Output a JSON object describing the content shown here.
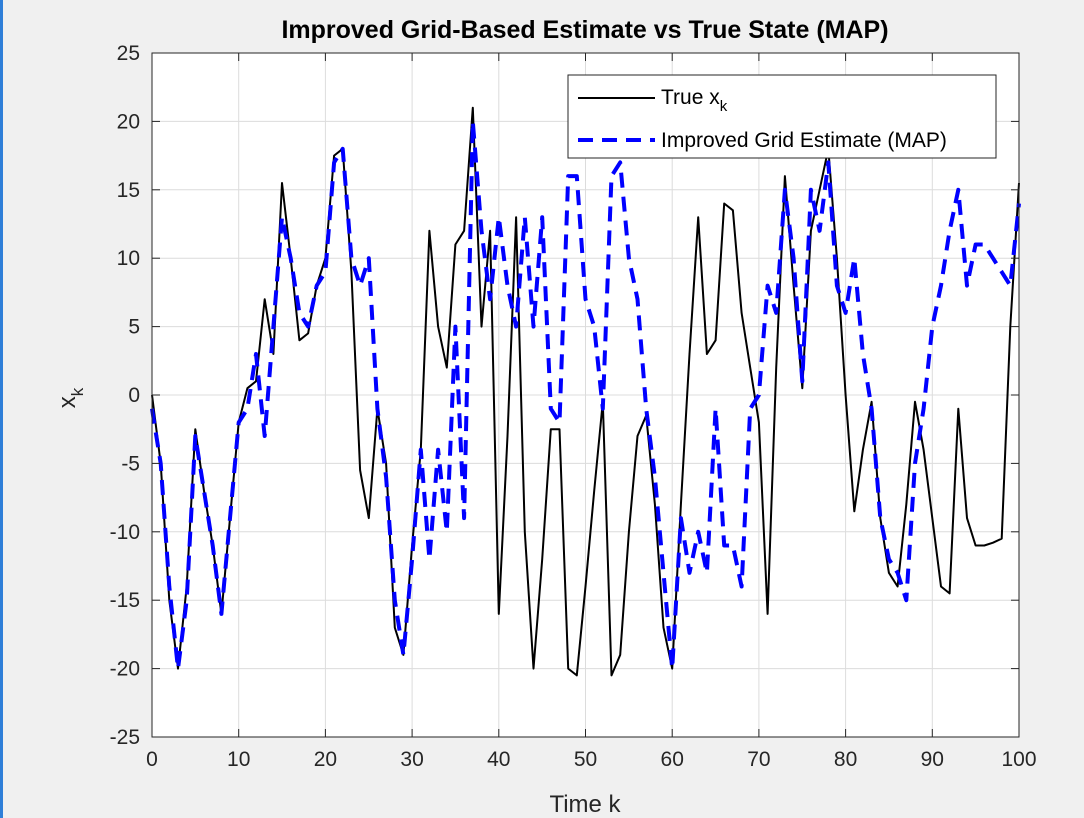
{
  "chart_data": {
    "type": "line",
    "title": "Improved Grid-Based Estimate vs True State (MAP)",
    "xlabel": "Time k",
    "ylabel": {
      "base": "x",
      "sub": "k"
    },
    "xlim": [
      0,
      100
    ],
    "ylim": [
      -25,
      25
    ],
    "xticks": [
      0,
      10,
      20,
      30,
      40,
      50,
      60,
      70,
      80,
      90,
      100
    ],
    "yticks": [
      -25,
      -20,
      -15,
      -10,
      -5,
      0,
      5,
      10,
      15,
      20,
      25
    ],
    "grid": true,
    "legend_position": "top-right",
    "series": [
      {
        "name": "True x",
        "name_sub": "k",
        "color": "#000000",
        "style": "solid",
        "x": [
          0,
          1,
          2,
          3,
          4,
          5,
          6,
          7,
          8,
          9,
          10,
          11,
          12,
          13,
          14,
          15,
          16,
          17,
          18,
          19,
          20,
          21,
          22,
          23,
          24,
          25,
          26,
          27,
          28,
          29,
          30,
          31,
          32,
          33,
          34,
          35,
          36,
          37,
          38,
          39,
          40,
          41,
          42,
          43,
          44,
          45,
          46,
          47,
          48,
          49,
          50,
          51,
          52,
          53,
          54,
          55,
          56,
          57,
          58,
          59,
          60,
          61,
          62,
          63,
          64,
          65,
          66,
          67,
          68,
          69,
          70,
          71,
          72,
          73,
          74,
          75,
          76,
          77,
          78,
          79,
          80,
          81,
          82,
          83,
          84,
          85,
          86,
          87,
          88,
          89,
          90,
          91,
          92,
          93,
          94,
          95,
          96,
          97,
          98,
          99,
          100
        ],
        "values": [
          0,
          -5,
          -15,
          -20,
          -14,
          -2.5,
          -7,
          -11,
          -16,
          -9,
          -2,
          0.5,
          1,
          7,
          3,
          15.5,
          10,
          4,
          4.5,
          8,
          10,
          17.5,
          18,
          9,
          -5.5,
          -9,
          -1,
          -5,
          -17,
          -19,
          -11,
          -4,
          12,
          5,
          2,
          11,
          12,
          21,
          5,
          12,
          -16,
          -3,
          13,
          -10,
          -20,
          -12,
          -2.5,
          -2.5,
          -20,
          -20.5,
          -14,
          -7,
          -0.5,
          -20.5,
          -19,
          -10,
          -3,
          -1.5,
          -8,
          -17,
          -20,
          -8,
          3,
          13,
          3,
          4,
          14,
          13.5,
          6,
          2,
          -2,
          -16,
          2,
          16,
          8,
          0.5,
          12,
          15,
          18,
          10,
          0,
          -8.5,
          -4,
          -0.5,
          -9,
          -13,
          -14,
          -8,
          -0.5,
          -4,
          -9,
          -14,
          -14.5,
          -1,
          -9,
          -11,
          -11,
          -10.8,
          -10.5,
          5,
          15.5
        ]
      },
      {
        "name": "Improved Grid Estimate (MAP)",
        "color": "#0000ff",
        "style": "dashed",
        "x": [
          0,
          1,
          2,
          3,
          4,
          5,
          6,
          7,
          8,
          9,
          10,
          11,
          12,
          13,
          14,
          15,
          16,
          17,
          18,
          19,
          20,
          21,
          22,
          23,
          24,
          25,
          26,
          27,
          28,
          29,
          30,
          31,
          32,
          33,
          34,
          35,
          36,
          37,
          38,
          39,
          40,
          41,
          42,
          43,
          44,
          45,
          46,
          47,
          48,
          49,
          50,
          51,
          52,
          53,
          54,
          55,
          56,
          57,
          58,
          59,
          60,
          61,
          62,
          63,
          64,
          65,
          66,
          67,
          68,
          69,
          70,
          71,
          72,
          73,
          74,
          75,
          76,
          77,
          78,
          79,
          80,
          81,
          82,
          83,
          84,
          85,
          86,
          87,
          88,
          89,
          90,
          91,
          92,
          93,
          94,
          95,
          96,
          97,
          98,
          99,
          100
        ],
        "values": [
          -1,
          -5,
          -14,
          -20,
          -15,
          -3,
          -7,
          -11,
          -16,
          -9,
          -2,
          -1,
          3,
          -3,
          5,
          13,
          10,
          6,
          5,
          8,
          9,
          17,
          18,
          10,
          8,
          10,
          -1,
          -6,
          -15,
          -19,
          -12,
          -4,
          -12,
          -4,
          -10,
          5,
          -9,
          20,
          12,
          7,
          13,
          8,
          5,
          13,
          5,
          13,
          -1,
          -2,
          16,
          16,
          7,
          5,
          -1,
          16,
          17,
          10,
          7,
          -1,
          -6,
          -13,
          -20,
          -9,
          -13,
          -10,
          -13,
          -1,
          -11,
          -11,
          -14,
          -1,
          0,
          8,
          6,
          15,
          10,
          1,
          15,
          12,
          17,
          8,
          6,
          10,
          3,
          -1,
          -9,
          -12,
          -13,
          -15,
          -5,
          -1,
          5,
          8,
          12,
          15,
          8,
          11,
          11,
          10,
          9,
          8,
          14
        ]
      }
    ]
  }
}
